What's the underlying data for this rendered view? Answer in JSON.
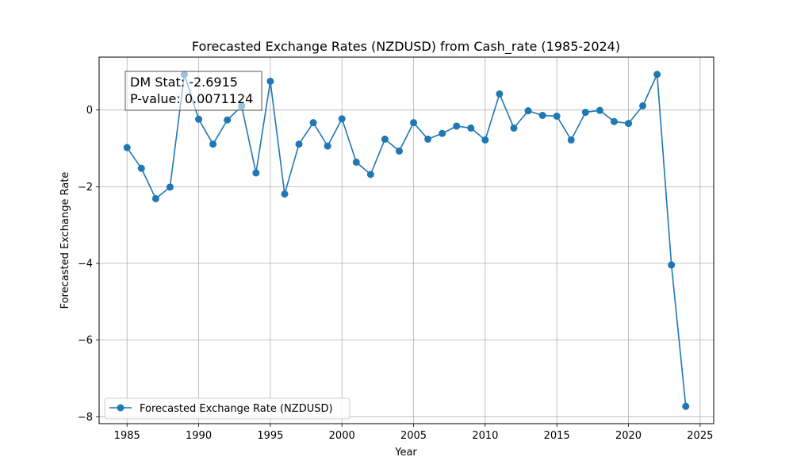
{
  "chart_data": {
    "type": "line",
    "title": "Forecasted Exchange Rates (NZDUSD) from Cash_rate (1985-2024)",
    "xlabel": "Year",
    "ylabel": "Forecasted Exchange Rate",
    "xlim": [
      1983.05,
      2025.95
    ],
    "ylim": [
      -8.18,
      1.38
    ],
    "xticks": [
      1985,
      1990,
      1995,
      2000,
      2005,
      2010,
      2015,
      2020,
      2025
    ],
    "yticks": [
      -8,
      -6,
      -4,
      -2,
      0
    ],
    "ytick_labels": [
      "−8",
      "−6",
      "−4",
      "−2",
      "0"
    ],
    "grid": true,
    "legend_position": "lower-left",
    "series": [
      {
        "name": "Forecasted Exchange Rate (NZDUSD)",
        "color": "#1f77b4",
        "marker": "circle",
        "x": [
          1985,
          1986,
          1987,
          1988,
          1989,
          1990,
          1991,
          1992,
          1993,
          1994,
          1995,
          1996,
          1997,
          1998,
          1999,
          2000,
          2001,
          2002,
          2003,
          2004,
          2005,
          2006,
          2007,
          2008,
          2009,
          2010,
          2011,
          2012,
          2013,
          2014,
          2015,
          2016,
          2017,
          2018,
          2019,
          2020,
          2021,
          2022,
          2023,
          2024
        ],
        "y": [
          -0.98,
          -1.52,
          -2.31,
          -2.01,
          0.93,
          -0.24,
          -0.89,
          -0.26,
          0.1,
          -1.64,
          0.75,
          -2.19,
          -0.89,
          -0.33,
          -0.94,
          -0.23,
          -1.36,
          -1.68,
          -0.76,
          -1.07,
          -0.33,
          -0.76,
          -0.61,
          -0.42,
          -0.47,
          -0.78,
          0.42,
          -0.47,
          -0.02,
          -0.14,
          -0.16,
          -0.78,
          -0.06,
          -0.01,
          -0.3,
          -0.35,
          0.11,
          0.93,
          -4.04,
          -7.73
        ]
      }
    ],
    "annotation": {
      "lines": [
        "DM Stat: -2.6915",
        "P-value: 0.0071124"
      ],
      "position": "top-left"
    }
  }
}
